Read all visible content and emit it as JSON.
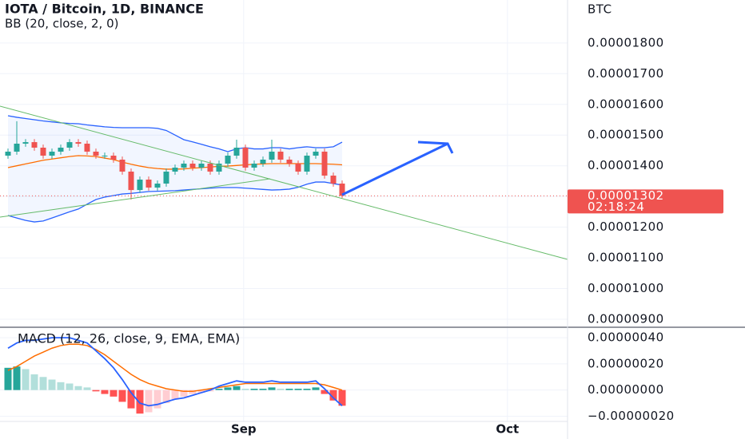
{
  "chart_data": [
    {
      "type": "candlestick",
      "title": "IOTA / Bitcoin, 1D, BINANCE",
      "subtitle": "BB (20, close, 2, 0)",
      "unit": "BTC",
      "up_color": "#26a69a",
      "down_color": "#ef5350",
      "band_color": "#2962ff",
      "basis_color": "#ff6d00",
      "open": [
        1.433e-05,
        1.446e-05,
        1.472e-05,
        1.477e-05,
        1.459e-05,
        1.433e-05,
        1.446e-05,
        1.459e-05,
        1.477e-05,
        1.472e-05,
        1.446e-05,
        1.433e-05,
        1.433e-05,
        1.42e-05,
        1.381e-05,
        1.321e-05,
        1.355e-05,
        1.329e-05,
        1.342e-05,
        1.381e-05,
        1.394e-05,
        1.407e-05,
        1.394e-05,
        1.407e-05,
        1.381e-05,
        1.407e-05,
        1.433e-05,
        1.459e-05,
        1.394e-05,
        1.407e-05,
        1.42e-05,
        1.446e-05,
        1.42e-05,
        1.407e-05,
        1.381e-05,
        1.433e-05,
        1.446e-05,
        1.368e-05,
        1.342e-05
      ],
      "high": [
        1.456e-05,
        1.545e-05,
        1.487e-05,
        1.487e-05,
        1.469e-05,
        1.456e-05,
        1.469e-05,
        1.487e-05,
        1.487e-05,
        1.482e-05,
        1.456e-05,
        1.443e-05,
        1.443e-05,
        1.43e-05,
        1.391e-05,
        1.365e-05,
        1.365e-05,
        1.352e-05,
        1.391e-05,
        1.404e-05,
        1.417e-05,
        1.417e-05,
        1.417e-05,
        1.417e-05,
        1.417e-05,
        1.443e-05,
        1.485e-05,
        1.469e-05,
        1.417e-05,
        1.43e-05,
        1.485e-05,
        1.456e-05,
        1.43e-05,
        1.417e-05,
        1.443e-05,
        1.456e-05,
        1.456e-05,
        1.378e-05,
        1.352e-05
      ],
      "low": [
        1.423e-05,
        1.436e-05,
        1.462e-05,
        1.449e-05,
        1.423e-05,
        1.423e-05,
        1.436e-05,
        1.449e-05,
        1.462e-05,
        1.436e-05,
        1.423e-05,
        1.423e-05,
        1.41e-05,
        1.371e-05,
        1.29e-05,
        1.311e-05,
        1.319e-05,
        1.319e-05,
        1.332e-05,
        1.371e-05,
        1.384e-05,
        1.384e-05,
        1.384e-05,
        1.371e-05,
        1.371e-05,
        1.397e-05,
        1.423e-05,
        1.384e-05,
        1.384e-05,
        1.397e-05,
        1.41e-05,
        1.41e-05,
        1.397e-05,
        1.371e-05,
        1.371e-05,
        1.423e-05,
        1.358e-05,
        1.332e-05,
        1.295e-05
      ],
      "close": [
        1.446e-05,
        1.472e-05,
        1.477e-05,
        1.459e-05,
        1.433e-05,
        1.446e-05,
        1.459e-05,
        1.477e-05,
        1.472e-05,
        1.446e-05,
        1.433e-05,
        1.433e-05,
        1.42e-05,
        1.381e-05,
        1.321e-05,
        1.355e-05,
        1.329e-05,
        1.342e-05,
        1.381e-05,
        1.394e-05,
        1.407e-05,
        1.394e-05,
        1.407e-05,
        1.381e-05,
        1.407e-05,
        1.433e-05,
        1.459e-05,
        1.394e-05,
        1.407e-05,
        1.42e-05,
        1.446e-05,
        1.42e-05,
        1.407e-05,
        1.381e-05,
        1.433e-05,
        1.446e-05,
        1.368e-05,
        1.342e-05,
        1.302e-05
      ],
      "bb_upper": [
        1.563e-05,
        1.558e-05,
        1.554e-05,
        1.55e-05,
        1.546e-05,
        1.543e-05,
        1.54e-05,
        1.538e-05,
        1.537e-05,
        1.533e-05,
        1.53e-05,
        1.527e-05,
        1.525e-05,
        1.524e-05,
        1.524e-05,
        1.524e-05,
        1.524e-05,
        1.522e-05,
        1.515e-05,
        1.5e-05,
        1.485e-05,
        1.478e-05,
        1.47e-05,
        1.462e-05,
        1.455e-05,
        1.446e-05,
        1.455e-05,
        1.459e-05,
        1.455e-05,
        1.455e-05,
        1.459e-05,
        1.459e-05,
        1.455e-05,
        1.459e-05,
        1.462e-05,
        1.459e-05,
        1.459e-05,
        1.462e-05,
        1.477e-05
      ],
      "bb_basis": [
        1.394e-05,
        1.4e-05,
        1.406e-05,
        1.412e-05,
        1.418e-05,
        1.422e-05,
        1.426e-05,
        1.43e-05,
        1.433e-05,
        1.432e-05,
        1.43e-05,
        1.425e-05,
        1.42e-05,
        1.412e-05,
        1.405e-05,
        1.399e-05,
        1.394e-05,
        1.391e-05,
        1.389e-05,
        1.389e-05,
        1.39e-05,
        1.392e-05,
        1.394e-05,
        1.396e-05,
        1.398e-05,
        1.399e-05,
        1.401e-05,
        1.403e-05,
        1.405e-05,
        1.406e-05,
        1.407e-05,
        1.407e-05,
        1.407e-05,
        1.407e-05,
        1.407e-05,
        1.407e-05,
        1.406e-05,
        1.405e-05,
        1.403e-05
      ],
      "bb_lower": [
        1.238e-05,
        1.23e-05,
        1.222e-05,
        1.217e-05,
        1.22e-05,
        1.23e-05,
        1.24e-05,
        1.25e-05,
        1.259e-05,
        1.275e-05,
        1.29e-05,
        1.298e-05,
        1.303e-05,
        1.308e-05,
        1.31e-05,
        1.313e-05,
        1.316e-05,
        1.317e-05,
        1.318e-05,
        1.319e-05,
        1.321e-05,
        1.323e-05,
        1.325e-05,
        1.327e-05,
        1.329e-05,
        1.329e-05,
        1.329e-05,
        1.327e-05,
        1.325e-05,
        1.323e-05,
        1.321e-05,
        1.322e-05,
        1.324e-05,
        1.33e-05,
        1.34e-05,
        1.347e-05,
        1.347e-05,
        1.342e-05,
        1.337e-05
      ],
      "ylim": [
        8.74e-06,
        1.94e-05
      ],
      "yticks": [
        {
          "value": 9e-06,
          "label": "0.00000900"
        },
        {
          "value": 1e-05,
          "label": "0.00001000"
        },
        {
          "value": 1.1e-05,
          "label": "0.00001100"
        },
        {
          "value": 1.2e-05,
          "label": "0.00001200"
        },
        {
          "value": 1.3e-05,
          "label": "0.00001300"
        },
        {
          "value": 1.4e-05,
          "label": "0.00001400"
        },
        {
          "value": 1.5e-05,
          "label": "0.00001500"
        },
        {
          "value": 1.6e-05,
          "label": "0.00001600"
        },
        {
          "value": 1.7e-05,
          "label": "0.00001700"
        },
        {
          "value": 1.8e-05,
          "label": "0.00001800"
        }
      ],
      "xticks": [
        {
          "value": 26.8,
          "label": "Sep"
        },
        {
          "value": 56.8,
          "label": "Oct"
        }
      ],
      "last_price": {
        "value": 1.302e-05,
        "label": "0.00001302"
      },
      "countdown": "02:18:24"
    },
    {
      "type": "macd",
      "title": "MACD (12, 26, close, 9, EMA, EMA)",
      "macd_color": "#2962ff",
      "signal_color": "#ff6d00",
      "macd": [
        3.2e-07,
        3.6e-07,
        3.8e-07,
        3.8e-07,
        3.9e-07,
        4e-07,
        4e-07,
        4e-07,
        3.8e-07,
        3.6e-07,
        3e-07,
        2.4e-07,
        1.7e-07,
        8e-08,
        -2e-08,
        -1e-07,
        -1.2e-07,
        -1.1e-07,
        -9e-08,
        -7e-08,
        -6e-08,
        -4e-08,
        -2e-08,
        0,
        3e-08,
        5e-08,
        7e-08,
        6e-08,
        6e-08,
        6e-08,
        7e-08,
        6e-08,
        6e-08,
        6e-08,
        6e-08,
        7e-08,
        1e-08,
        -6e-08,
        -1.2e-07
      ],
      "signal": [
        1.5e-07,
        1.8e-07,
        2.2e-07,
        2.6e-07,
        2.9e-07,
        3.2e-07,
        3.4e-07,
        3.5e-07,
        3.5e-07,
        3.4e-07,
        3.1e-07,
        2.7e-07,
        2.2e-07,
        1.7e-07,
        1.2e-07,
        8e-08,
        5e-08,
        3e-08,
        1e-08,
        0,
        -1e-08,
        -1e-08,
        0,
        1e-08,
        2e-08,
        3e-08,
        4e-08,
        5e-08,
        5e-08,
        5e-08,
        5e-08,
        5e-08,
        5e-08,
        5e-08,
        5e-08,
        5e-08,
        4e-08,
        2e-08,
        0
      ],
      "histogram": [
        1.7e-07,
        1.8e-07,
        1.6e-07,
        1.2e-07,
        1e-07,
        8e-08,
        6e-08,
        5e-08,
        3e-08,
        2e-08,
        -1e-08,
        -3e-08,
        -5e-08,
        -9e-08,
        -1.4e-07,
        -1.8e-07,
        -1.7e-07,
        -1.4e-07,
        -1e-07,
        -7e-08,
        -5e-08,
        -3e-08,
        -2e-08,
        -1e-08,
        1e-08,
        2e-08,
        3e-08,
        1e-08,
        1e-08,
        1e-08,
        2e-08,
        1e-08,
        1e-08,
        1e-08,
        1e-08,
        2e-08,
        -3e-08,
        -8e-08,
        -1.2e-07
      ],
      "ylim": [
        -2.4e-07,
        4.8e-07
      ],
      "yticks": [
        {
          "value": -2e-07,
          "label": "−0.00000020"
        },
        {
          "value": 0,
          "label": "0.00000000"
        },
        {
          "value": 2e-07,
          "label": "0.00000020"
        },
        {
          "value": 4e-07,
          "label": "0.00000040"
        }
      ]
    }
  ]
}
